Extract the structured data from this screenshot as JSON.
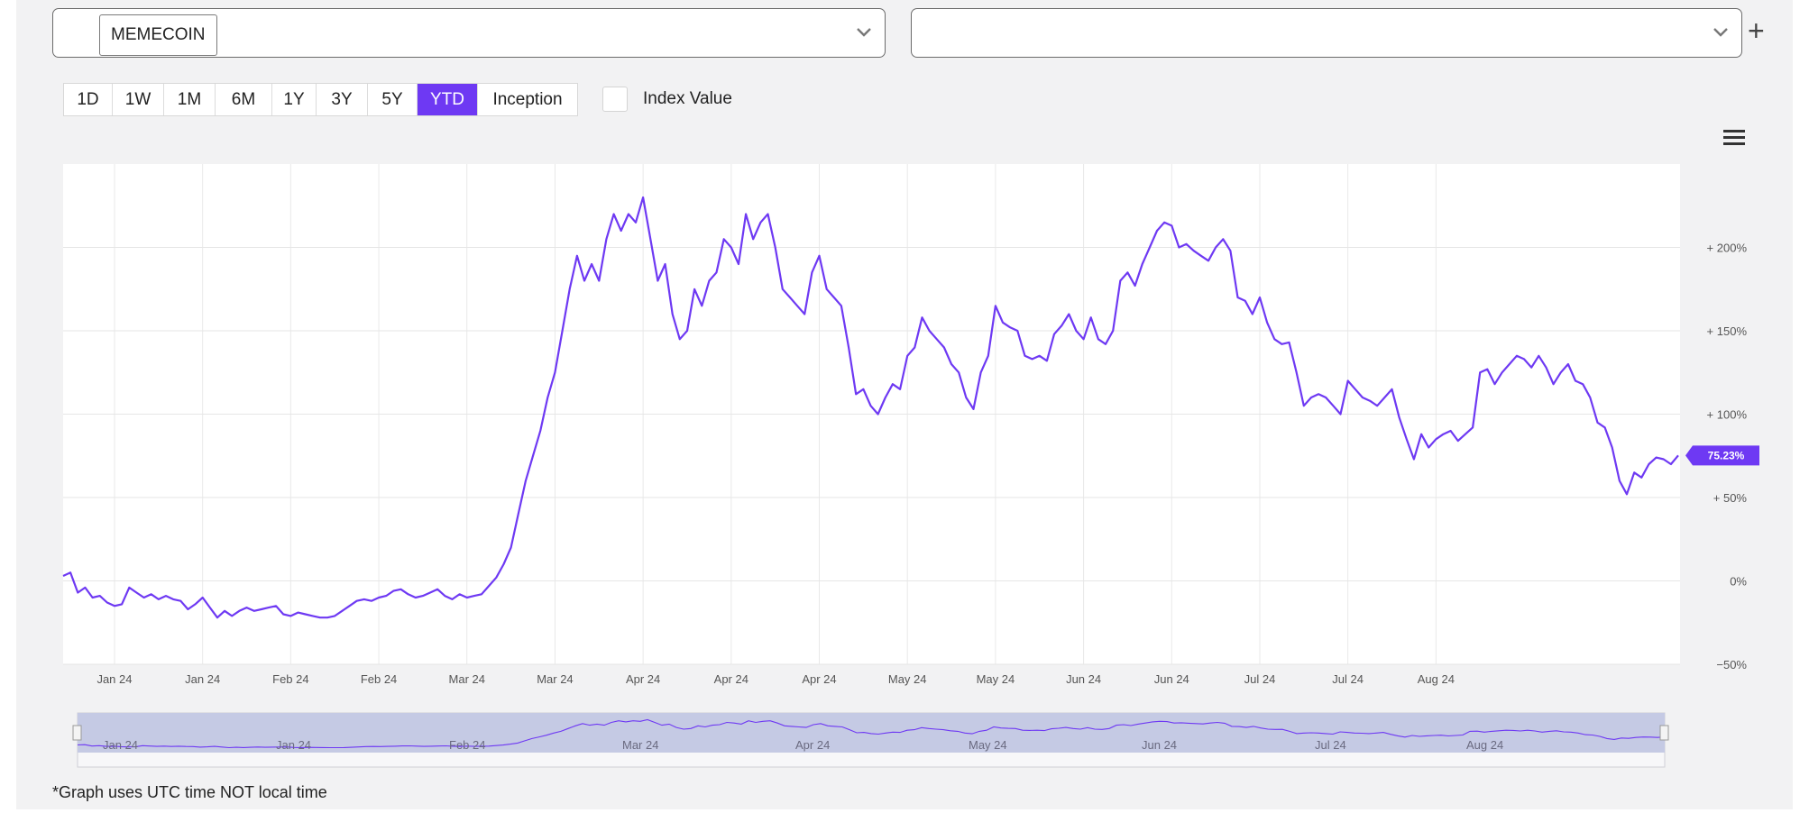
{
  "selectors": {
    "primary": {
      "chip_label": "MEMECOIN"
    },
    "secondary": {
      "value": ""
    },
    "add_label": "+"
  },
  "ranges": [
    {
      "label": "1D",
      "active": false
    },
    {
      "label": "1W",
      "active": false
    },
    {
      "label": "1M",
      "active": false
    },
    {
      "label": "6M",
      "active": false
    },
    {
      "label": "1Y",
      "active": false
    },
    {
      "label": "3Y",
      "active": false
    },
    {
      "label": "5Y",
      "active": false
    },
    {
      "label": "YTD",
      "active": true
    },
    {
      "label": "Inception",
      "active": false
    }
  ],
  "index_value": {
    "label": "Index Value",
    "checked": false
  },
  "footnote": "*Graph uses UTC time NOT local time",
  "colors": {
    "accent": "#6e39f3",
    "line": "#6e39f3",
    "navigator_fill": "#c5cae4"
  },
  "icons": {
    "menu": "hamburger-menu-icon",
    "chevron": "chevron-down-icon",
    "add": "plus-icon"
  },
  "chart_data": {
    "type": "line",
    "title": "",
    "xlabel": "",
    "ylabel": "",
    "ylim": [
      -50,
      250
    ],
    "y_ticks": [
      200,
      150,
      100,
      50,
      0,
      -50
    ],
    "y_tick_labels": [
      "+ 200%",
      "+ 150%",
      "+ 100%",
      "+ 50%",
      "0%",
      "−50%"
    ],
    "x_tick_labels": [
      "Jan 24",
      "Jan 24",
      "Feb 24",
      "Feb 24",
      "Mar 24",
      "Mar 24",
      "Apr 24",
      "Apr 24",
      "Apr 24",
      "May 24",
      "May 24",
      "Jun 24",
      "Jun 24",
      "Jul 24",
      "Jul 24",
      "Aug 24"
    ],
    "x_tick_index": [
      7,
      19,
      31,
      43,
      55,
      67,
      79,
      91,
      103,
      115,
      127,
      139,
      151,
      163,
      175,
      187
    ],
    "navigator_labels": [
      "Jan 24",
      "Jan 24",
      "Feb 24",
      "Mar 24",
      "Apr 24",
      "May 24",
      "Jun 24",
      "Jul 24",
      "Aug 24"
    ],
    "navigator_label_index": [
      3,
      27,
      51,
      75,
      99,
      123,
      147,
      171,
      192
    ],
    "last_value_label": "75.23%",
    "grid": true,
    "series": [
      {
        "values": [
          3,
          5,
          -7,
          -4,
          -10,
          -9,
          -13,
          -15,
          -14,
          -4,
          -7,
          -10,
          -8,
          -11,
          -9,
          -11,
          -12,
          -17,
          -14,
          -10,
          -16,
          -22,
          -18,
          -21,
          -18,
          -16,
          -18,
          -17,
          -16,
          -15,
          -20,
          -21,
          -19,
          -20,
          -21,
          -22,
          -22,
          -21,
          -18,
          -15,
          -12,
          -11,
          -12,
          -10,
          -9,
          -6,
          -5,
          -8,
          -10,
          -9,
          -7,
          -5,
          -9,
          -11,
          -8,
          -10,
          -9,
          -8,
          -3,
          2,
          10,
          20,
          40,
          60,
          75,
          90,
          110,
          125,
          150,
          175,
          195,
          180,
          190,
          180,
          205,
          220,
          210,
          220,
          215,
          230,
          205,
          180,
          190,
          160,
          145,
          150,
          175,
          165,
          180,
          185,
          205,
          200,
          190,
          220,
          205,
          215,
          220,
          200,
          175,
          170,
          165,
          160,
          185,
          195,
          175,
          170,
          165,
          140,
          112,
          115,
          105,
          100,
          110,
          118,
          115,
          135,
          140,
          158,
          150,
          145,
          140,
          130,
          125,
          110,
          103,
          125,
          135,
          165,
          155,
          152,
          150,
          135,
          133,
          135,
          132,
          148,
          153,
          160,
          150,
          145,
          158,
          145,
          142,
          150,
          180,
          185,
          177,
          190,
          200,
          210,
          215,
          213,
          200,
          202,
          198,
          195,
          192,
          200,
          205,
          198,
          170,
          168,
          160,
          170,
          155,
          145,
          142,
          143,
          125,
          105,
          110,
          112,
          110,
          105,
          100,
          120,
          115,
          110,
          108,
          105,
          110,
          115,
          98,
          85,
          73,
          88,
          80,
          85,
          88,
          90,
          84,
          88,
          92,
          125,
          127,
          118,
          125,
          130,
          135,
          133,
          128,
          135,
          128,
          118,
          125,
          130,
          120,
          118,
          110,
          95,
          92,
          80,
          60,
          52,
          65,
          62,
          70,
          74,
          73,
          70,
          75.23
        ]
      }
    ]
  }
}
